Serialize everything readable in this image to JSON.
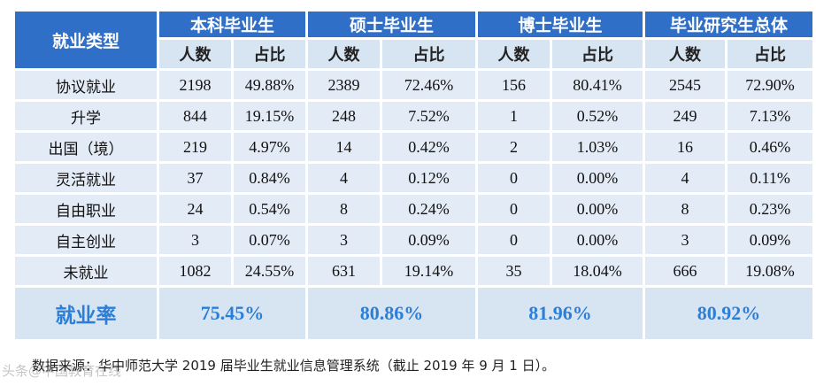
{
  "header": {
    "category_label": "就业类型",
    "groups": [
      "本科毕业生",
      "硕士毕业生",
      "博士毕业生",
      "毕业研究生总体"
    ],
    "sub_count": "人数",
    "sub_ratio": "占比"
  },
  "rows": [
    {
      "label": "协议就业",
      "cells": [
        "2198",
        "49.88%",
        "2389",
        "72.46%",
        "156",
        "80.41%",
        "2545",
        "72.90%"
      ]
    },
    {
      "label": "升学",
      "cells": [
        "844",
        "19.15%",
        "248",
        "7.52%",
        "1",
        "0.52%",
        "249",
        "7.13%"
      ]
    },
    {
      "label": "出国（境）",
      "cells": [
        "219",
        "4.97%",
        "14",
        "0.42%",
        "2",
        "1.03%",
        "16",
        "0.46%"
      ]
    },
    {
      "label": "灵活就业",
      "cells": [
        "37",
        "0.84%",
        "4",
        "0.12%",
        "0",
        "0.00%",
        "4",
        "0.11%"
      ]
    },
    {
      "label": "自由职业",
      "cells": [
        "24",
        "0.54%",
        "8",
        "0.24%",
        "0",
        "0.00%",
        "8",
        "0.23%"
      ]
    },
    {
      "label": "自主创业",
      "cells": [
        "3",
        "0.07%",
        "3",
        "0.09%",
        "0",
        "0.00%",
        "3",
        "0.09%"
      ]
    },
    {
      "label": "未就业",
      "cells": [
        "1082",
        "24.55%",
        "631",
        "19.14%",
        "35",
        "18.04%",
        "666",
        "19.08%"
      ]
    }
  ],
  "employment_rate": {
    "label": "就业率",
    "values": [
      "75.45%",
      "80.86%",
      "81.96%",
      "80.92%"
    ]
  },
  "source_note": "数据来源：华中师范大学 2019 届毕业生就业信息管理系统（截止 2019 年 9 月 1 日）。",
  "watermark": "头条@中国教育在线",
  "colors": {
    "header_blue": "#2f6fc8",
    "cell_bg": "#e3ebf6",
    "rate_text": "#2d7ed6"
  }
}
